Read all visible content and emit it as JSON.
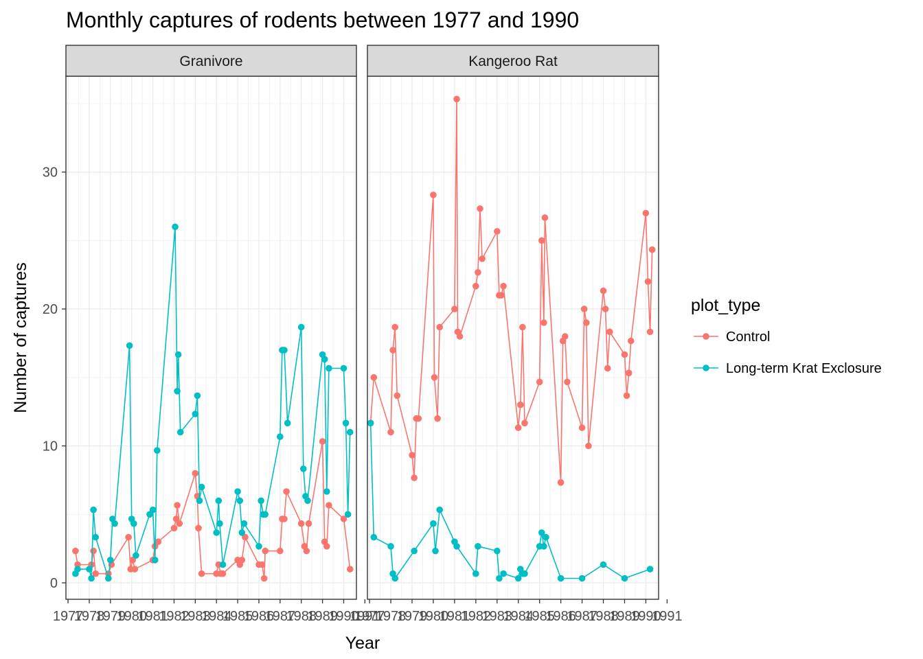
{
  "chart_data": {
    "type": "line",
    "title": "Monthly captures of rodents between 1977 and 1990",
    "xlabel": "Year",
    "ylabel": "Number of captures",
    "xlim": [
      1976.9,
      1990.6
    ],
    "ylim": [
      -1.2,
      37.0
    ],
    "x_ticks": [
      1977,
      1978,
      1979,
      1980,
      1981,
      1982,
      1983,
      1984,
      1985,
      1986,
      1987,
      1988,
      1989,
      1990,
      1991
    ],
    "y_ticks": [
      0,
      10,
      20,
      30
    ],
    "grid": true,
    "legend": {
      "title": "plot_type",
      "position": "right"
    },
    "series_styles": [
      {
        "name": "Control",
        "color": "#F8766D"
      },
      {
        "name": "Long-term Krat Exclosure",
        "color": "#00BFC4"
      }
    ],
    "panels": [
      {
        "label": "Granivore",
        "series": [
          {
            "name": "Control",
            "points": [
              [
                1977.35,
                2.33
              ],
              [
                1977.45,
                1.33
              ],
              [
                1978.1,
                1.33
              ],
              [
                1978.2,
                2.33
              ],
              [
                1978.3,
                0.67
              ],
              [
                1978.9,
                0.67
              ],
              [
                1979.05,
                1.33
              ],
              [
                1979.85,
                3.33
              ],
              [
                1979.95,
                1.0
              ],
              [
                1980.05,
                1.67
              ],
              [
                1980.15,
                1.0
              ],
              [
                1981.0,
                1.67
              ],
              [
                1981.1,
                2.67
              ],
              [
                1981.25,
                3.0
              ],
              [
                1982.0,
                4.0
              ],
              [
                1982.1,
                4.67
              ],
              [
                1982.15,
                5.67
              ],
              [
                1982.25,
                4.33
              ],
              [
                1983.0,
                8.0
              ],
              [
                1983.1,
                6.33
              ],
              [
                1983.15,
                4.0
              ],
              [
                1983.3,
                0.67
              ],
              [
                1984.0,
                0.67
              ],
              [
                1984.1,
                1.33
              ],
              [
                1984.2,
                0.67
              ],
              [
                1984.3,
                0.67
              ],
              [
                1985.0,
                1.67
              ],
              [
                1985.1,
                1.33
              ],
              [
                1985.2,
                1.67
              ],
              [
                1985.35,
                3.33
              ],
              [
                1986.0,
                1.33
              ],
              [
                1986.15,
                1.33
              ],
              [
                1986.25,
                0.33
              ],
              [
                1986.3,
                2.33
              ],
              [
                1987.0,
                2.33
              ],
              [
                1987.1,
                4.67
              ],
              [
                1987.2,
                4.67
              ],
              [
                1987.3,
                6.67
              ],
              [
                1988.0,
                4.33
              ],
              [
                1988.15,
                2.67
              ],
              [
                1988.25,
                2.33
              ],
              [
                1988.35,
                4.33
              ],
              [
                1989.0,
                10.33
              ],
              [
                1989.1,
                3.0
              ],
              [
                1989.2,
                2.67
              ],
              [
                1989.3,
                5.67
              ],
              [
                1990.0,
                4.67
              ],
              [
                1990.3,
                1.0
              ]
            ]
          },
          {
            "name": "Long-term Krat Exclosure",
            "points": [
              [
                1977.35,
                0.67
              ],
              [
                1977.45,
                1.0
              ],
              [
                1978.0,
                1.0
              ],
              [
                1978.1,
                0.33
              ],
              [
                1978.2,
                5.33
              ],
              [
                1978.3,
                3.33
              ],
              [
                1978.9,
                0.33
              ],
              [
                1979.0,
                1.67
              ],
              [
                1979.1,
                4.67
              ],
              [
                1979.2,
                4.33
              ],
              [
                1979.9,
                17.33
              ],
              [
                1980.0,
                4.67
              ],
              [
                1980.1,
                4.33
              ],
              [
                1980.2,
                2.0
              ],
              [
                1980.85,
                5.0
              ],
              [
                1981.0,
                5.33
              ],
              [
                1981.1,
                1.67
              ],
              [
                1981.2,
                9.67
              ],
              [
                1982.05,
                26.0
              ],
              [
                1982.15,
                14.0
              ],
              [
                1982.2,
                16.67
              ],
              [
                1982.3,
                11.0
              ],
              [
                1983.0,
                12.33
              ],
              [
                1983.1,
                13.67
              ],
              [
                1983.2,
                6.0
              ],
              [
                1983.3,
                7.0
              ],
              [
                1984.0,
                3.67
              ],
              [
                1984.1,
                6.0
              ],
              [
                1984.15,
                4.33
              ],
              [
                1984.3,
                1.33
              ],
              [
                1985.0,
                6.67
              ],
              [
                1985.1,
                6.0
              ],
              [
                1985.2,
                3.67
              ],
              [
                1985.3,
                4.33
              ],
              [
                1986.0,
                2.67
              ],
              [
                1986.1,
                6.0
              ],
              [
                1986.2,
                5.0
              ],
              [
                1986.3,
                5.0
              ],
              [
                1987.0,
                10.67
              ],
              [
                1987.1,
                17.0
              ],
              [
                1987.2,
                17.0
              ],
              [
                1987.35,
                11.67
              ],
              [
                1988.0,
                18.67
              ],
              [
                1988.1,
                8.33
              ],
              [
                1988.2,
                6.33
              ],
              [
                1988.3,
                6.0
              ],
              [
                1989.0,
                16.67
              ],
              [
                1989.1,
                16.33
              ],
              [
                1989.2,
                6.67
              ],
              [
                1989.3,
                15.67
              ],
              [
                1990.0,
                15.67
              ],
              [
                1990.1,
                11.67
              ],
              [
                1990.2,
                5.0
              ],
              [
                1990.3,
                11.0
              ]
            ]
          }
        ]
      },
      {
        "label": "Kangeroo Rat",
        "series": [
          {
            "name": "Control",
            "points": [
              [
                1977.05,
                11.67
              ],
              [
                1977.2,
                15.0
              ],
              [
                1978.0,
                11.0
              ],
              [
                1978.1,
                17.0
              ],
              [
                1978.2,
                18.67
              ],
              [
                1978.3,
                13.67
              ],
              [
                1979.0,
                9.33
              ],
              [
                1979.1,
                7.67
              ],
              [
                1979.2,
                12.0
              ],
              [
                1979.3,
                12.0
              ],
              [
                1980.0,
                28.33
              ],
              [
                1980.05,
                15.0
              ],
              [
                1980.2,
                12.0
              ],
              [
                1980.3,
                18.67
              ],
              [
                1981.0,
                20.0
              ],
              [
                1981.1,
                35.33
              ],
              [
                1981.15,
                18.33
              ],
              [
                1981.25,
                18.0
              ],
              [
                1982.0,
                21.67
              ],
              [
                1982.1,
                22.67
              ],
              [
                1982.2,
                27.33
              ],
              [
                1982.3,
                23.67
              ],
              [
                1983.0,
                25.67
              ],
              [
                1983.1,
                21.0
              ],
              [
                1983.2,
                21.0
              ],
              [
                1983.3,
                21.67
              ],
              [
                1984.0,
                11.33
              ],
              [
                1984.1,
                13.0
              ],
              [
                1984.2,
                18.67
              ],
              [
                1984.3,
                11.67
              ],
              [
                1985.0,
                14.67
              ],
              [
                1985.1,
                25.0
              ],
              [
                1985.2,
                19.0
              ],
              [
                1985.25,
                26.67
              ],
              [
                1986.0,
                7.33
              ],
              [
                1986.1,
                17.67
              ],
              [
                1986.2,
                18.0
              ],
              [
                1986.3,
                14.67
              ],
              [
                1987.0,
                11.33
              ],
              [
                1987.1,
                20.0
              ],
              [
                1987.2,
                19.0
              ],
              [
                1987.3,
                10.0
              ],
              [
                1988.0,
                21.33
              ],
              [
                1988.1,
                20.0
              ],
              [
                1988.2,
                15.67
              ],
              [
                1988.3,
                18.33
              ],
              [
                1989.0,
                16.67
              ],
              [
                1989.1,
                13.67
              ],
              [
                1989.2,
                15.33
              ],
              [
                1989.3,
                17.67
              ],
              [
                1990.0,
                27.0
              ],
              [
                1990.1,
                22.0
              ],
              [
                1990.2,
                18.33
              ],
              [
                1990.3,
                24.33
              ]
            ]
          },
          {
            "name": "Long-term Krat Exclosure",
            "points": [
              [
                1977.05,
                11.67
              ],
              [
                1977.2,
                3.33
              ],
              [
                1978.0,
                2.67
              ],
              [
                1978.1,
                0.67
              ],
              [
                1978.2,
                0.33
              ],
              [
                1979.1,
                2.33
              ],
              [
                1980.0,
                4.33
              ],
              [
                1980.1,
                2.33
              ],
              [
                1980.3,
                5.33
              ],
              [
                1981.0,
                3.0
              ],
              [
                1981.1,
                2.67
              ],
              [
                1982.0,
                0.67
              ],
              [
                1982.1,
                2.67
              ],
              [
                1983.0,
                2.33
              ],
              [
                1983.1,
                0.33
              ],
              [
                1983.3,
                0.67
              ],
              [
                1984.0,
                0.33
              ],
              [
                1984.1,
                1.0
              ],
              [
                1984.2,
                0.67
              ],
              [
                1984.3,
                0.67
              ],
              [
                1985.0,
                2.67
              ],
              [
                1985.1,
                3.67
              ],
              [
                1985.2,
                2.67
              ],
              [
                1985.3,
                3.33
              ],
              [
                1986.0,
                0.33
              ],
              [
                1987.0,
                0.33
              ],
              [
                1988.0,
                1.33
              ],
              [
                1989.0,
                0.33
              ],
              [
                1990.2,
                1.0
              ]
            ]
          }
        ]
      }
    ]
  }
}
